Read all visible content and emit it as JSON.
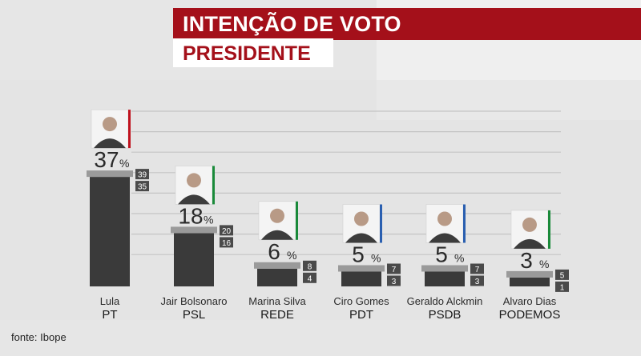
{
  "header": {
    "title": "INTENÇÃO DE VOTO",
    "subtitle": "PRESIDENTE"
  },
  "source": "fonte: Ibope",
  "chart_data": {
    "type": "bar",
    "title": "INTENÇÃO DE VOTO",
    "subtitle": "PRESIDENTE",
    "ylim": [
      0,
      45
    ],
    "grid": true,
    "unit": "%",
    "categories": [
      "Lula",
      "Jair Bolsonaro",
      "Marina Silva",
      "Ciro Gomes",
      "Geraldo Alckmin",
      "Alvaro Dias"
    ],
    "parties": [
      "PT",
      "PSL",
      "REDE",
      "PDT",
      "PSDB",
      "PODEMOS"
    ],
    "values": [
      37,
      18,
      6,
      5,
      5,
      3
    ],
    "range_high": [
      39,
      20,
      8,
      7,
      7,
      5
    ],
    "range_low": [
      35,
      16,
      4,
      3,
      3,
      1
    ],
    "party_colors": [
      "#c0121e",
      "#1a8a3a",
      "#1a8a3a",
      "#2a5fb0",
      "#2a5fb0",
      "#1a8a3a"
    ]
  }
}
